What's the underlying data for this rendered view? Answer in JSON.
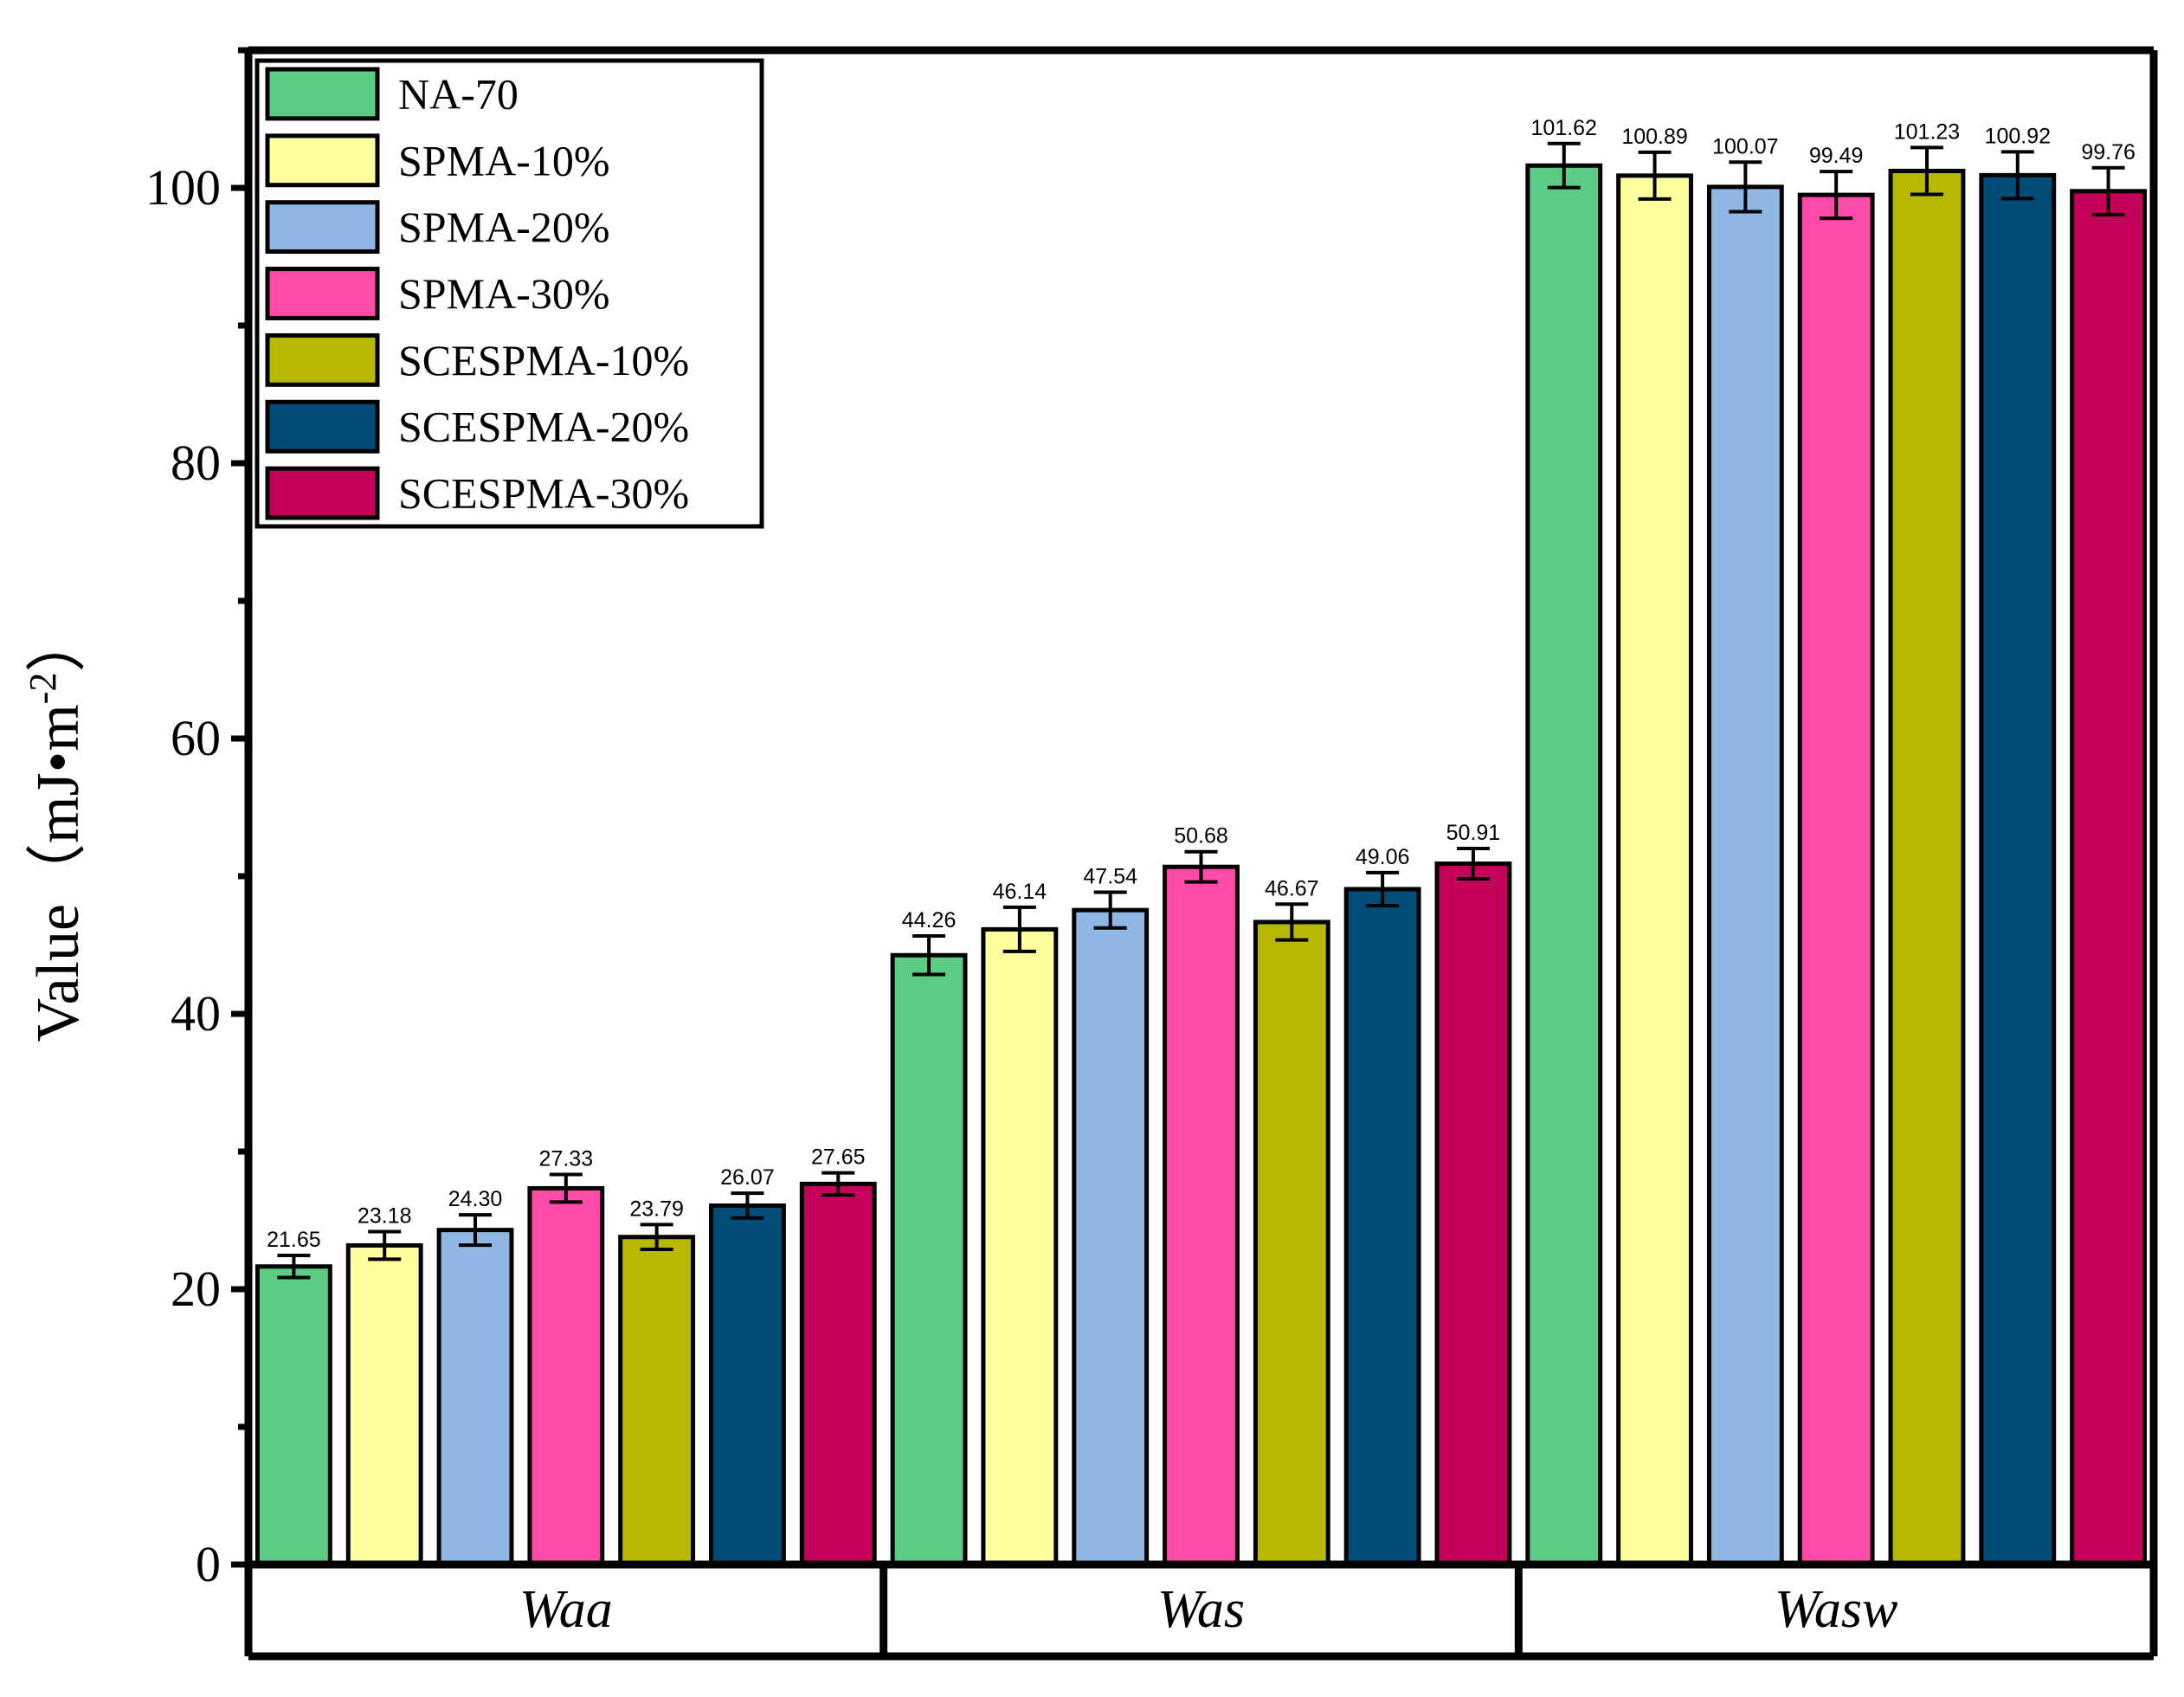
{
  "chart_data": {
    "type": "bar",
    "title": "",
    "xlabel": "",
    "ylabel": "Value（mJ•m",
    "ylabel_sup": "-2",
    "ylabel_close": "）",
    "ylim": [
      0,
      110
    ],
    "yticks": [
      0,
      20,
      40,
      60,
      80,
      100
    ],
    "categories": [
      "Waa",
      "Was",
      "Wasw"
    ],
    "legend_position": "top-left",
    "series": [
      {
        "name": "NA-70",
        "color": "#5ccc84",
        "values": [
          21.65,
          44.26,
          101.62
        ],
        "labels": [
          "21.65",
          "44.26",
          "101.62"
        ],
        "errors": [
          0.8,
          1.4,
          1.6
        ]
      },
      {
        "name": "SPMA-10%",
        "color": "#ffff9e",
        "values": [
          23.18,
          46.14,
          100.89
        ],
        "labels": [
          "23.18",
          "46.14",
          "100.89"
        ],
        "errors": [
          1.0,
          1.6,
          1.7
        ]
      },
      {
        "name": "SPMA-20%",
        "color": "#8fb7e3",
        "values": [
          24.3,
          47.54,
          100.07
        ],
        "labels": [
          "24.30",
          "47.54",
          "100.07"
        ],
        "errors": [
          1.1,
          1.3,
          1.8
        ]
      },
      {
        "name": "SPMA-30%",
        "color": "#ff4aa8",
        "values": [
          27.33,
          50.68,
          99.49
        ],
        "labels": [
          "27.33",
          "50.68",
          "99.49"
        ],
        "errors": [
          1.0,
          1.1,
          1.7
        ]
      },
      {
        "name": "SCESPMA-10%",
        "color": "#b7b800",
        "values": [
          23.79,
          46.67,
          101.23
        ],
        "labels": [
          "23.79",
          "46.67",
          "101.23"
        ],
        "errors": [
          0.9,
          1.3,
          1.7
        ]
      },
      {
        "name": "SCESPMA-20%",
        "color": "#004d7a",
        "values": [
          26.07,
          49.06,
          100.92
        ],
        "labels": [
          "26.07",
          "49.06",
          "100.92"
        ],
        "errors": [
          0.9,
          1.2,
          1.7
        ]
      },
      {
        "name": "SCESPMA-30%",
        "color": "#c4005a",
        "values": [
          27.65,
          50.91,
          99.76
        ],
        "labels": [
          "27.65",
          "50.91",
          "99.76"
        ],
        "errors": [
          0.8,
          1.1,
          1.7
        ]
      }
    ]
  }
}
